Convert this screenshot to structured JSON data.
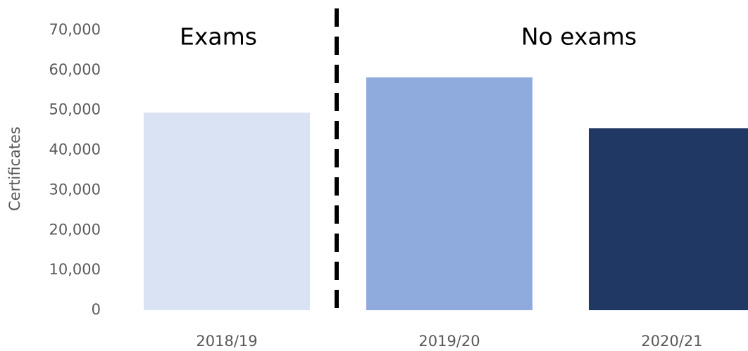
{
  "chart_data": {
    "type": "bar",
    "y_label": "Certificates",
    "categories": [
      "2018/19",
      "2019/20",
      "2020/21"
    ],
    "values": [
      49400,
      58200,
      45500
    ],
    "colors": [
      "#dae3f3",
      "#8faadc",
      "#203864"
    ],
    "annotations": [
      "Exams",
      "No exams"
    ],
    "ylim": [
      0,
      70000
    ],
    "yticks": [
      0,
      {
        "value": 10000,
        "label": "10,000"
      },
      {
        "value": 20000,
        "label": "20,000"
      },
      {
        "value": 30000,
        "label": "30,000"
      },
      {
        "value": 40000,
        "label": "40,000"
      },
      {
        "value": 50000,
        "label": "50,000"
      },
      {
        "value": 60000,
        "label": "60,000"
      },
      {
        "value": 70000,
        "label": "70,000"
      }
    ],
    "grid": false
  }
}
